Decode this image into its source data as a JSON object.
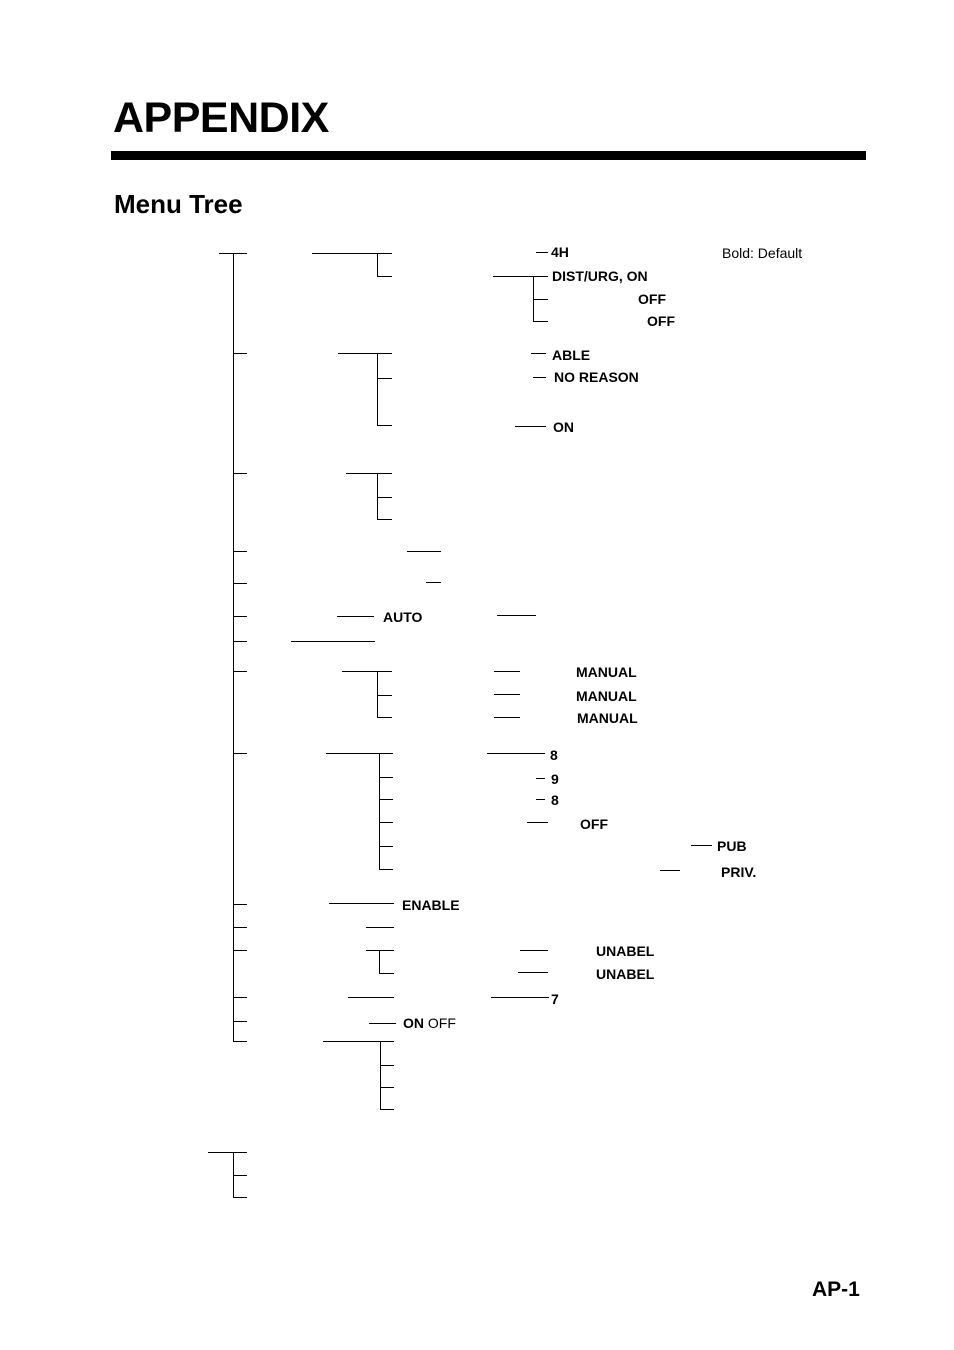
{
  "page": {
    "title": "APPENDIX",
    "section_title": "Menu Tree",
    "legend": "Bold: Default",
    "page_number": "AP-1"
  },
  "tree_labels": {
    "t4h": "4H",
    "dist_urg_on": "DIST/URG, ON",
    "off_1": "OFF",
    "off_2": "OFF",
    "able": "ABLE",
    "no_reason": "NO REASON",
    "on_1": "ON",
    "auto": "AUTO",
    "manual_1": "MANUAL",
    "manual_2": "MANUAL",
    "manual_3": "MANUAL",
    "n8_1": "8",
    "n9": "9",
    "n8_2": "8",
    "off_3": "OFF",
    "pub": "PUB",
    "priv": "PRIV.",
    "enable": "ENABLE",
    "unabel_1": "UNABEL",
    "unabel_2": "UNABEL",
    "n7": "7",
    "on_2": "ON",
    "off_4": "OFF"
  }
}
